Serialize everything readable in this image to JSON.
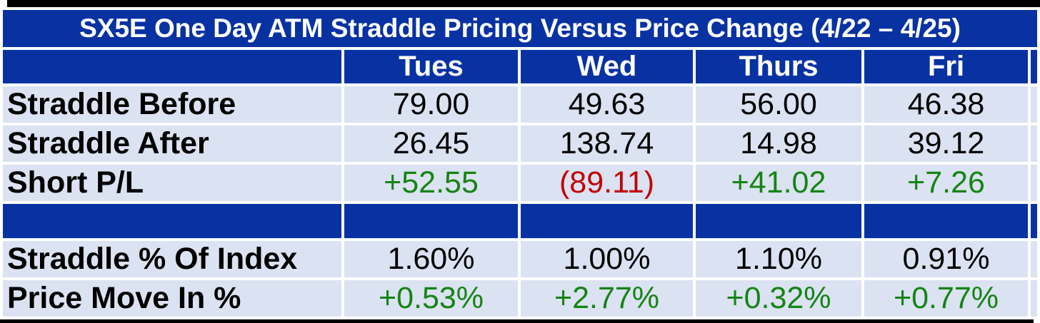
{
  "title": "SX5E One Day ATM Straddle Pricing Versus Price Change (4/22 – 4/25)",
  "columns": [
    "Tues",
    "Wed",
    "Thurs",
    "Fri"
  ],
  "rows": [
    {
      "label": "Straddle Before",
      "values": [
        "79.00",
        "49.63",
        "56.00",
        "46.38"
      ],
      "styles": [
        "plain",
        "plain",
        "plain",
        "plain"
      ]
    },
    {
      "label": "Straddle After",
      "values": [
        "26.45",
        "138.74",
        "14.98",
        "39.12"
      ],
      "styles": [
        "plain",
        "plain",
        "plain",
        "plain"
      ]
    },
    {
      "label": "Short P/L",
      "values": [
        "+52.55",
        "(89.11)",
        "+41.02",
        "+7.26"
      ],
      "styles": [
        "pos",
        "neg",
        "pos",
        "pos"
      ]
    },
    {
      "label": "Straddle % Of Index",
      "values": [
        "1.60%",
        "1.00%",
        "1.10%",
        "0.91%"
      ],
      "styles": [
        "plain",
        "plain",
        "plain",
        "plain"
      ]
    },
    {
      "label": "Price Move In %",
      "values": [
        "+0.53%",
        "+2.77%",
        "+0.32%",
        "+0.77%"
      ],
      "styles": [
        "pos",
        "pos",
        "pos",
        "pos"
      ]
    }
  ],
  "colors": {
    "band_blue": "#0832A2",
    "row_light": "#DBE2F1",
    "positive_green": "#148414",
    "negative_red": "#C00000",
    "gridline_white": "#FFFFFF",
    "border_black": "#000000"
  },
  "chart_data": {
    "type": "table",
    "title": "SX5E One Day ATM Straddle Pricing Versus Price Change (4/22 – 4/25)",
    "columns": [
      "Tues",
      "Wed",
      "Thurs",
      "Fri"
    ],
    "rows": [
      {
        "label": "Straddle Before",
        "values": [
          79.0,
          49.63,
          56.0,
          46.38
        ]
      },
      {
        "label": "Straddle After",
        "values": [
          26.45,
          138.74,
          14.98,
          39.12
        ]
      },
      {
        "label": "Short P/L",
        "values": [
          52.55,
          -89.11,
          41.02,
          7.26
        ]
      },
      {
        "label": "Straddle % Of Index",
        "values_percent": [
          1.6,
          1.0,
          1.1,
          0.91
        ]
      },
      {
        "label": "Price Move In %",
        "values_percent": [
          0.53,
          2.77,
          0.32,
          0.77
        ]
      }
    ],
    "notes": "Negative Short P/L shown in parentheses and red; gains shown with + prefix in green"
  }
}
